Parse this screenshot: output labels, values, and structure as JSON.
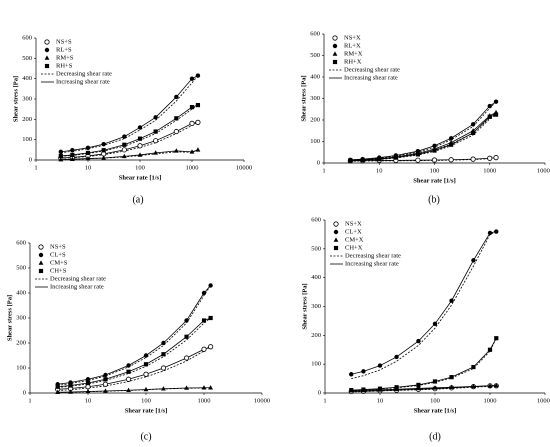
{
  "chart_data": [
    {
      "type": "line",
      "caption": "(a)",
      "xlabel": "Shear rate [1/s]",
      "ylabel": "Shear stress [Pa]",
      "xscale": "log",
      "xlim": [
        1,
        10000
      ],
      "ylim": [
        0,
        600
      ],
      "xticks": [
        1,
        10,
        100,
        1000,
        10000
      ],
      "yticks": [
        0,
        100,
        200,
        300,
        400,
        500,
        600
      ],
      "legend": "upper left",
      "x": [
        3,
        5,
        10,
        20,
        50,
        100,
        200,
        500,
        1000,
        1300
      ],
      "series": [
        {
          "name": "NS+S",
          "color": "#000000",
          "marker": "circle-open",
          "values": [
            10,
            13,
            20,
            30,
            50,
            70,
            95,
            140,
            180,
            185
          ],
          "values_decreasing": [
            8,
            11,
            17,
            26,
            44,
            62,
            85,
            130,
            170,
            185
          ]
        },
        {
          "name": "RL+S",
          "color": "#000000",
          "marker": "circle",
          "values": [
            40,
            48,
            60,
            78,
            115,
            160,
            210,
            310,
            400,
            415
          ],
          "values_decreasing": [
            35,
            43,
            55,
            72,
            105,
            148,
            195,
            290,
            380,
            415
          ]
        },
        {
          "name": "RM+S",
          "color": "#000000",
          "marker": "triangle",
          "values": [
            2,
            4,
            7,
            10,
            18,
            25,
            35,
            45,
            40,
            50
          ],
          "values_decreasing": [
            1,
            3,
            6,
            9,
            15,
            22,
            30,
            40,
            38,
            50
          ]
        },
        {
          "name": "RH+S",
          "color": "#000000",
          "marker": "square",
          "values": [
            20,
            25,
            35,
            48,
            75,
            105,
            140,
            205,
            260,
            270
          ],
          "values_decreasing": [
            18,
            22,
            32,
            44,
            68,
            97,
            130,
            195,
            250,
            270
          ]
        }
      ],
      "line_legend": [
        {
          "name": "Decreasing shear rate",
          "style": "dashed"
        },
        {
          "name": "Increasing shear rate",
          "style": "solid"
        }
      ]
    },
    {
      "type": "line",
      "caption": "(b)",
      "xlabel": "Shear rate [1/s]",
      "ylabel": "Shear stress [Pa]",
      "xscale": "log",
      "xlim": [
        1,
        10000
      ],
      "ylim": [
        0,
        600
      ],
      "xticks": [
        1,
        10,
        100,
        1000,
        10000
      ],
      "yticks": [
        0,
        100,
        200,
        300,
        400,
        500,
        600
      ],
      "legend": "upper left",
      "x": [
        3,
        5,
        10,
        20,
        50,
        100,
        200,
        500,
        1000,
        1300
      ],
      "series": [
        {
          "name": "NS+X",
          "color": "#000000",
          "marker": "circle-open",
          "values": [
            10,
            11,
            12,
            12,
            13,
            14,
            15,
            18,
            22,
            25
          ],
          "values_decreasing": [
            8,
            9,
            10,
            10,
            11,
            12,
            13,
            16,
            20,
            25
          ]
        },
        {
          "name": "RL+X",
          "color": "#000000",
          "marker": "circle",
          "values": [
            15,
            18,
            25,
            35,
            55,
            80,
            115,
            180,
            265,
            285
          ],
          "values_decreasing": [
            14,
            17,
            23,
            32,
            50,
            74,
            108,
            170,
            255,
            285
          ]
        },
        {
          "name": "RM+X",
          "color": "#000000",
          "marker": "triangle",
          "values": [
            12,
            15,
            20,
            28,
            45,
            65,
            95,
            150,
            220,
            235
          ],
          "values_decreasing": [
            11,
            14,
            18,
            26,
            42,
            60,
            88,
            140,
            210,
            235
          ]
        },
        {
          "name": "RH+X",
          "color": "#000000",
          "marker": "square",
          "values": [
            12,
            14,
            18,
            25,
            40,
            58,
            85,
            140,
            215,
            225
          ],
          "values_decreasing": [
            10,
            13,
            16,
            23,
            37,
            54,
            80,
            130,
            205,
            225
          ]
        }
      ],
      "line_legend": [
        {
          "name": "Decreasing shear rate",
          "style": "dashed"
        },
        {
          "name": "Increasing shear rate",
          "style": "solid"
        }
      ]
    },
    {
      "type": "line",
      "caption": "(c)",
      "xlabel": "Shear rate [1/s]",
      "ylabel": "Shear stress [Pa]",
      "xscale": "log",
      "xlim": [
        1,
        10000
      ],
      "ylim": [
        0,
        600
      ],
      "xticks": [
        1,
        10,
        100,
        1000,
        10000
      ],
      "yticks": [
        0,
        100,
        200,
        300,
        400,
        500,
        600
      ],
      "legend": "upper left",
      "x": [
        3,
        5,
        10,
        20,
        50,
        100,
        200,
        500,
        1000,
        1300
      ],
      "series": [
        {
          "name": "NS+S",
          "color": "#000000",
          "marker": "circle-open",
          "values": [
            15,
            18,
            25,
            35,
            55,
            75,
            100,
            140,
            175,
            185
          ],
          "values_decreasing": [
            10,
            13,
            20,
            28,
            46,
            65,
            88,
            128,
            168,
            185
          ]
        },
        {
          "name": "CL+S",
          "color": "#000000",
          "marker": "circle",
          "values": [
            35,
            42,
            55,
            72,
            110,
            150,
            200,
            290,
            400,
            430
          ],
          "values_decreasing": [
            30,
            38,
            50,
            68,
            104,
            142,
            190,
            280,
            390,
            430
          ]
        },
        {
          "name": "CM+S",
          "color": "#000000",
          "marker": "triangle",
          "values": [
            3,
            4,
            6,
            8,
            11,
            14,
            17,
            20,
            21,
            21
          ],
          "values_decreasing": [
            2,
            3,
            5,
            7,
            10,
            13,
            16,
            19,
            20,
            21
          ]
        },
        {
          "name": "CH+S",
          "color": "#000000",
          "marker": "square",
          "values": [
            25,
            30,
            40,
            55,
            85,
            115,
            155,
            225,
            290,
            300
          ],
          "values_decreasing": [
            22,
            27,
            36,
            50,
            78,
            107,
            145,
            212,
            280,
            300
          ]
        }
      ],
      "line_legend": [
        {
          "name": "Decreasing shear rate",
          "style": "dashed"
        },
        {
          "name": "Increasing shear rate",
          "style": "solid"
        }
      ]
    },
    {
      "type": "line",
      "caption": "(d)",
      "xlabel": "Shear rate [1/s]",
      "ylabel": "Shear stress [Pa]",
      "xscale": "log",
      "xlim": [
        1,
        10000
      ],
      "ylim": [
        0,
        600
      ],
      "xticks": [
        1,
        10,
        100,
        1000,
        10000
      ],
      "yticks": [
        0,
        100,
        200,
        300,
        400,
        500,
        600
      ],
      "legend": "upper left",
      "x": [
        3,
        5,
        10,
        20,
        50,
        100,
        200,
        500,
        1000,
        1300
      ],
      "series": [
        {
          "name": "NS+X",
          "color": "#000000",
          "marker": "circle-open",
          "values": [
            5,
            6,
            8,
            10,
            13,
            15,
            18,
            22,
            25,
            25
          ],
          "values_decreasing": [
            4,
            5,
            7,
            9,
            11,
            13,
            16,
            20,
            23,
            25
          ]
        },
        {
          "name": "CL+X",
          "color": "#000000",
          "marker": "circle",
          "values": [
            65,
            75,
            95,
            125,
            180,
            240,
            320,
            460,
            555,
            560
          ],
          "values_decreasing": [
            50,
            60,
            80,
            110,
            165,
            225,
            305,
            440,
            550,
            560
          ]
        },
        {
          "name": "CM+X",
          "color": "#000000",
          "marker": "triangle",
          "values": [
            8,
            9,
            11,
            13,
            16,
            18,
            20,
            23,
            25,
            26
          ],
          "values_decreasing": [
            7,
            8,
            10,
            12,
            14,
            16,
            18,
            21,
            24,
            26
          ]
        },
        {
          "name": "CH+X",
          "color": "#000000",
          "marker": "square",
          "values": [
            10,
            12,
            15,
            20,
            28,
            40,
            55,
            90,
            150,
            190
          ],
          "values_decreasing": [
            9,
            11,
            14,
            18,
            26,
            37,
            52,
            85,
            145,
            190
          ]
        }
      ],
      "line_legend": [
        {
          "name": "Decreasing shear rate",
          "style": "dashed"
        },
        {
          "name": "Increasing shear rate",
          "style": "solid"
        }
      ]
    }
  ]
}
